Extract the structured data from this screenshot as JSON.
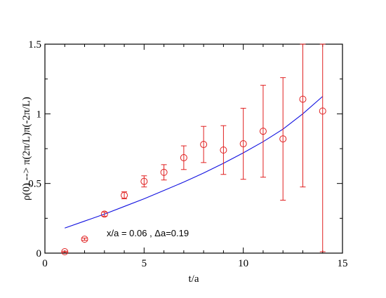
{
  "chart_data": {
    "type": "scatter",
    "xlabel": "t/a",
    "ylabel": "ρ(0) --> π(2π/L)π(-2π/L)",
    "xlim": [
      0,
      15
    ],
    "ylim": [
      0,
      1.5
    ],
    "x_ticks": [
      "0",
      "5",
      "10",
      "15"
    ],
    "y_ticks": [
      "0",
      "0.5",
      "1",
      "1.5"
    ],
    "grid": false,
    "annotation": "x/a = 0.06 , Δa=0.19",
    "colors": {
      "points": "#e02020",
      "fit": "#1010e0",
      "axes": "#000000"
    },
    "points": [
      {
        "x": 1,
        "y": 0.01,
        "err": 0.004
      },
      {
        "x": 2,
        "y": 0.1,
        "err": 0.008
      },
      {
        "x": 3,
        "y": 0.28,
        "err": 0.015
      },
      {
        "x": 4,
        "y": 0.415,
        "err": 0.025
      },
      {
        "x": 5,
        "y": 0.515,
        "err": 0.04
      },
      {
        "x": 6,
        "y": 0.58,
        "err": 0.055
      },
      {
        "x": 7,
        "y": 0.685,
        "err": 0.085
      },
      {
        "x": 8,
        "y": 0.78,
        "err": 0.13
      },
      {
        "x": 9,
        "y": 0.74,
        "err": 0.175
      },
      {
        "x": 10,
        "y": 0.785,
        "err": 0.255
      },
      {
        "x": 11,
        "y": 0.875,
        "err": 0.33
      },
      {
        "x": 12,
        "y": 0.82,
        "err": 0.44
      },
      {
        "x": 13,
        "y": 1.105,
        "err": 0.63
      },
      {
        "x": 14,
        "y": 1.02,
        "err": 1.01
      }
    ],
    "fit": {
      "x": [
        1,
        2,
        3,
        4,
        5,
        6,
        7,
        8,
        9,
        10,
        11,
        12,
        13,
        14
      ],
      "y": [
        0.18,
        0.23,
        0.28,
        0.335,
        0.39,
        0.45,
        0.51,
        0.575,
        0.645,
        0.72,
        0.8,
        0.89,
        1.0,
        1.125
      ]
    }
  }
}
